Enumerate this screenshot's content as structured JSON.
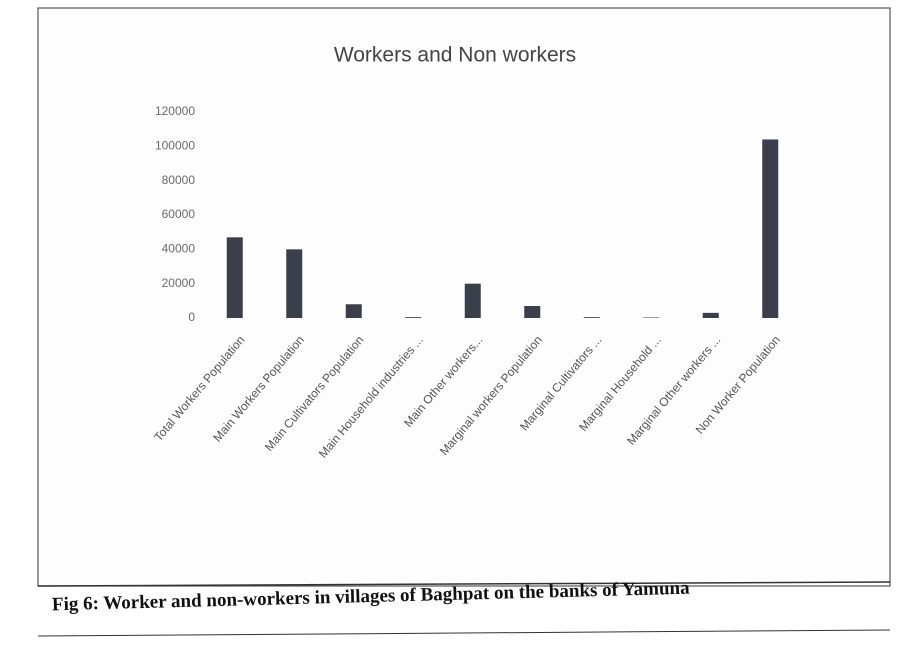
{
  "chart_data": {
    "type": "bar",
    "title": "Workers and Non workers",
    "categories": [
      "Total Workers Population",
      "Main Workers Population",
      "Main Cultivators Population",
      "Main Household industries ...",
      "Main Other workers...",
      "Marginal workers Population",
      "Marginal Cultivators ...",
      "Marginal Household ...",
      "Marginal Other workers ...",
      "Non Worker Population"
    ],
    "values": [
      47000,
      40000,
      8000,
      500,
      20000,
      7000,
      500,
      300,
      3000,
      104000
    ],
    "color": "#3b3f4c",
    "ylim": [
      0,
      120000
    ],
    "yticks": [
      0,
      20000,
      40000,
      60000,
      80000,
      100000,
      120000
    ],
    "grid": false,
    "caption": "Fig 6: Worker and non-workers in villages of Baghpat on the banks of Yamuna"
  }
}
